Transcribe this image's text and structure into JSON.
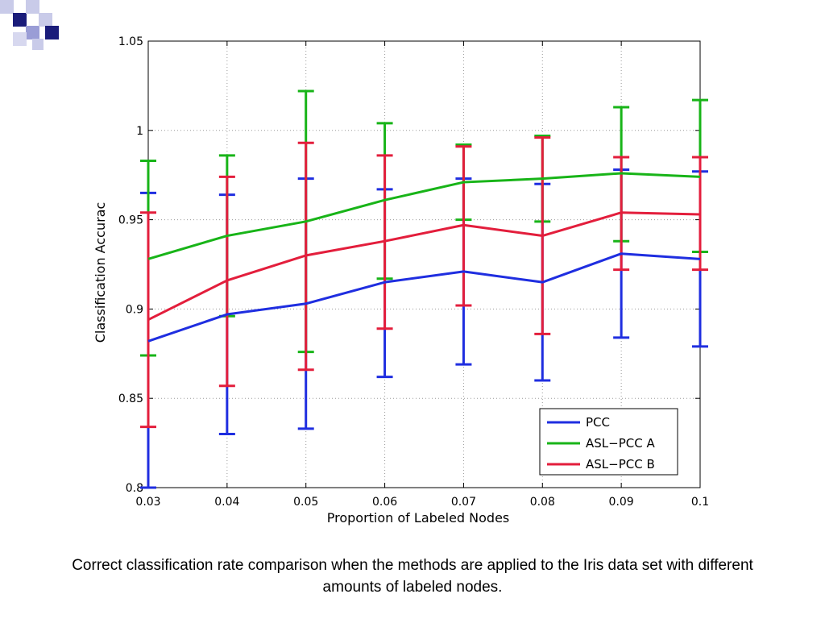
{
  "caption": "Correct classification rate comparison when the methods are applied to the Iris data set with different amounts of labeled nodes.",
  "chart_data": {
    "type": "line",
    "xlabel": "Proportion of Labeled Nodes",
    "ylabel": "Classification Accurac",
    "xlim": [
      0.03,
      0.1
    ],
    "ylim": [
      0.8,
      1.05
    ],
    "x": [
      0.03,
      0.04,
      0.05,
      0.06,
      0.07,
      0.08,
      0.09,
      0.1
    ],
    "x_tick_labels": [
      "0.03",
      "0.04",
      "0.05",
      "0.06",
      "0.07",
      "0.08",
      "0.09",
      "0.1"
    ],
    "y_ticks": [
      0.8,
      0.85,
      0.9,
      0.95,
      1,
      1.05
    ],
    "y_tick_labels": [
      "0.8",
      "0.85",
      "0.9",
      "0.95",
      "1",
      "1.05"
    ],
    "grid": true,
    "legend_position": "bottom-right",
    "series": [
      {
        "name": "PCC",
        "color": "#1f2ee0",
        "values": [
          0.882,
          0.897,
          0.903,
          0.915,
          0.921,
          0.915,
          0.931,
          0.928
        ],
        "error_low": [
          0.8,
          0.83,
          0.833,
          0.862,
          0.869,
          0.86,
          0.884,
          0.879
        ],
        "error_high": [
          0.965,
          0.964,
          0.973,
          0.967,
          0.973,
          0.97,
          0.978,
          0.977
        ]
      },
      {
        "name": "ASL−PCC A",
        "color": "#18b418",
        "values": [
          0.928,
          0.941,
          0.949,
          0.961,
          0.971,
          0.973,
          0.976,
          0.974
        ],
        "error_low": [
          0.874,
          0.896,
          0.876,
          0.917,
          0.95,
          0.949,
          0.938,
          0.932
        ],
        "error_high": [
          0.983,
          0.986,
          1.022,
          1.004,
          0.992,
          0.997,
          1.013,
          1.017
        ]
      },
      {
        "name": "ASL−PCC B",
        "color": "#e31e3c",
        "values": [
          0.894,
          0.916,
          0.93,
          0.938,
          0.947,
          0.941,
          0.954,
          0.953
        ],
        "error_low": [
          0.834,
          0.857,
          0.866,
          0.889,
          0.902,
          0.886,
          0.922,
          0.922
        ],
        "error_high": [
          0.954,
          0.974,
          0.993,
          0.986,
          0.991,
          0.996,
          0.985,
          0.985
        ]
      }
    ]
  }
}
